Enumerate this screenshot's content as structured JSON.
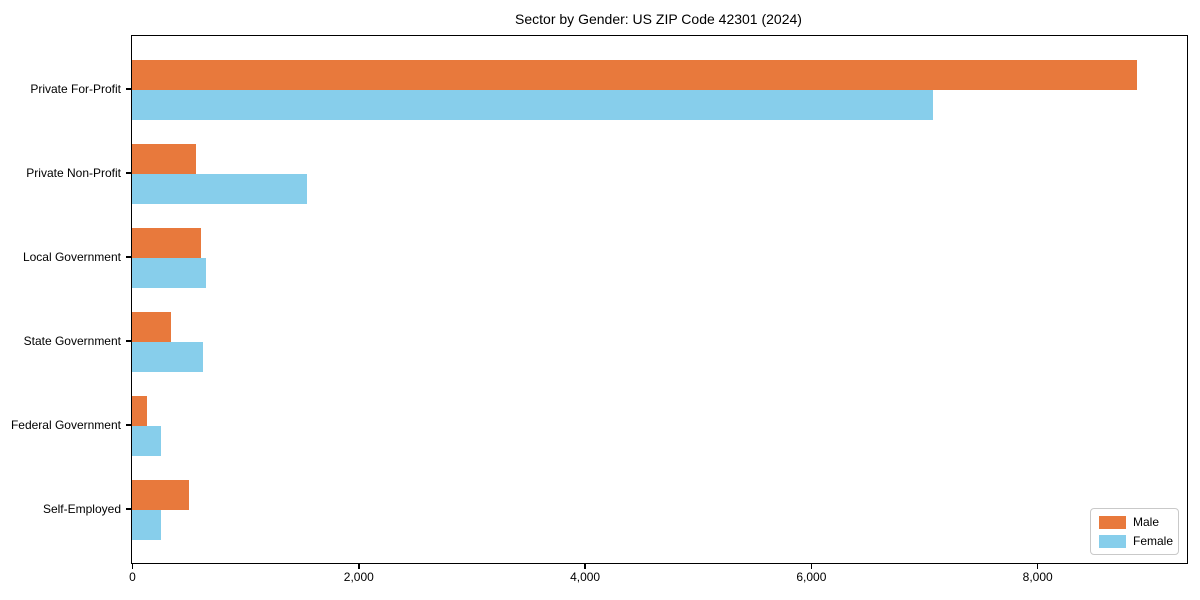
{
  "chart_data": {
    "type": "bar",
    "orientation": "horizontal",
    "title": "Sector by Gender: US ZIP Code 42301 (2024)",
    "categories": [
      "Private For-Profit",
      "Private Non-Profit",
      "Local Government",
      "State Government",
      "Federal Government",
      "Self-Employed"
    ],
    "series": [
      {
        "name": "Male",
        "color": "#e8793c",
        "values": [
          8880,
          570,
          610,
          345,
          130,
          500
        ]
      },
      {
        "name": "Female",
        "color": "#87ceeb",
        "values": [
          7080,
          1550,
          655,
          630,
          255,
          260
        ]
      }
    ],
    "xlabel": "",
    "ylabel": "",
    "xlim": [
      0,
      9324
    ],
    "x_ticks": [
      0,
      2000,
      4000,
      6000,
      8000
    ],
    "x_tick_labels": [
      "0",
      "2,000",
      "4,000",
      "6,000",
      "8,000"
    ],
    "grid": false,
    "legend_position": "lower right",
    "frame": true,
    "colors": {
      "spine": "#000000",
      "background": "#ffffff",
      "legend_border": "#c9c9c9"
    }
  }
}
